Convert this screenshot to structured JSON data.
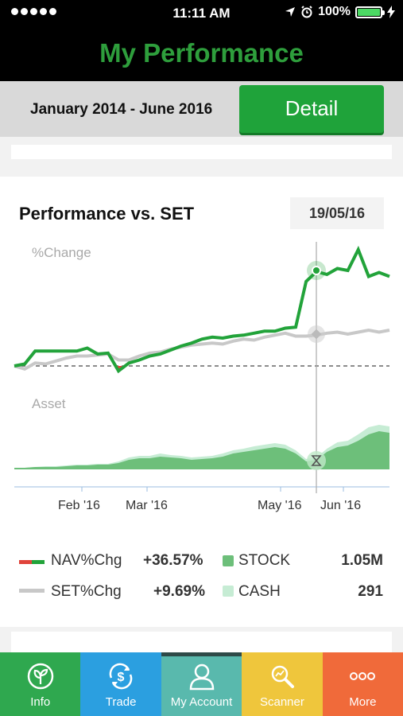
{
  "status_bar": {
    "time": "11:11 AM",
    "battery": "100%"
  },
  "header": {
    "title": "My Performance"
  },
  "range": {
    "label": "January 2014 - June 2016",
    "detail_button": "Detail"
  },
  "card": {
    "title": "Performance vs. SET",
    "date": "19/05/16",
    "pct_label": "%Change",
    "asset_label": "Asset"
  },
  "chart_data": {
    "type": "line",
    "x_ticks": [
      "Feb '16",
      "Mar '16",
      "May '16",
      "Jun '16"
    ],
    "series": [
      {
        "name": "NAV%Chg",
        "color": "#22a33a",
        "values": [
          0,
          0.2,
          1.5,
          1.5,
          1.5,
          1.5,
          1.5,
          1.8,
          1.2,
          1.3,
          -0.5,
          0.3,
          0.6,
          1.0,
          1.2,
          1.6,
          2.0,
          2.3,
          2.7,
          2.9,
          2.8,
          3.0,
          3.1,
          3.3,
          3.5,
          3.5,
          3.8,
          3.9,
          8.5,
          9.5,
          9.2,
          9.8,
          9.6,
          11.7,
          9.0,
          9.4,
          9.0
        ]
      },
      {
        "name": "SET%Chg",
        "color": "#c8c8c8",
        "values": [
          0,
          -0.3,
          0.3,
          0.2,
          0.5,
          0.8,
          1.0,
          1.0,
          1.1,
          1.2,
          0.6,
          0.6,
          1.0,
          1.3,
          1.4,
          1.7,
          1.9,
          2.1,
          2.2,
          2.3,
          2.2,
          2.5,
          2.7,
          2.6,
          2.9,
          3.1,
          3.3,
          3.0,
          3.0,
          3.1,
          3.3,
          3.4,
          3.2,
          3.4,
          3.6,
          3.4,
          3.6
        ]
      }
    ],
    "marker": {
      "date": "19/05/16",
      "nav": 9.6,
      "set": 3.2
    },
    "asset": {
      "legend": [
        {
          "name": "STOCK",
          "color": "#6dbf7a"
        },
        {
          "name": "CASH",
          "color": "#c6ecd4"
        }
      ]
    }
  },
  "legend": {
    "nav": {
      "label": "NAV%Chg",
      "value": "+36.57%"
    },
    "set": {
      "label": "SET%Chg",
      "value": "+9.69%"
    },
    "stock": {
      "label": "STOCK",
      "value": "1.05M"
    },
    "cash": {
      "label": "CASH",
      "value": "291"
    }
  },
  "tabs": [
    {
      "label": "Info",
      "color": "#2fa84f",
      "icon": "sprout-icon"
    },
    {
      "label": "Trade",
      "color": "#2b9fe0",
      "icon": "dollar-refresh-icon"
    },
    {
      "label": "My Account",
      "color": "#59b9ad",
      "icon": "person-icon"
    },
    {
      "label": "Scanner",
      "color": "#efc63c",
      "icon": "magnifier-icon"
    },
    {
      "label": "More",
      "color": "#f06a3a",
      "icon": "more-dots-icon"
    }
  ]
}
